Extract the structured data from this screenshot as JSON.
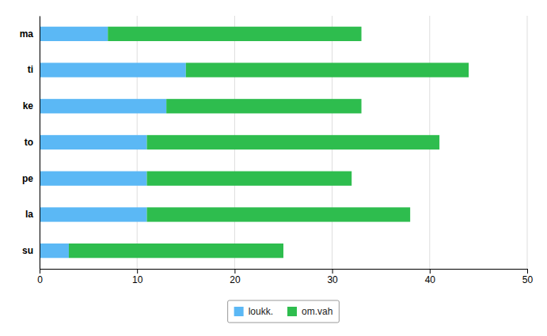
{
  "chart_data": {
    "type": "bar",
    "orientation": "horizontal",
    "stacked": true,
    "categories": [
      "ma",
      "ti",
      "ke",
      "to",
      "pe",
      "la",
      "su"
    ],
    "series": [
      {
        "name": "loukk.",
        "color": "#5BB8F5",
        "values": [
          7,
          15,
          13,
          11,
          11,
          11,
          3
        ]
      },
      {
        "name": "om.vah",
        "color": "#2EBD4E",
        "values": [
          26,
          29,
          20,
          30,
          21,
          27,
          22
        ]
      }
    ],
    "xlim": [
      0,
      50
    ],
    "xticks": [
      0,
      10,
      20,
      30,
      40,
      50
    ],
    "grid": true,
    "legend": "bottom"
  }
}
